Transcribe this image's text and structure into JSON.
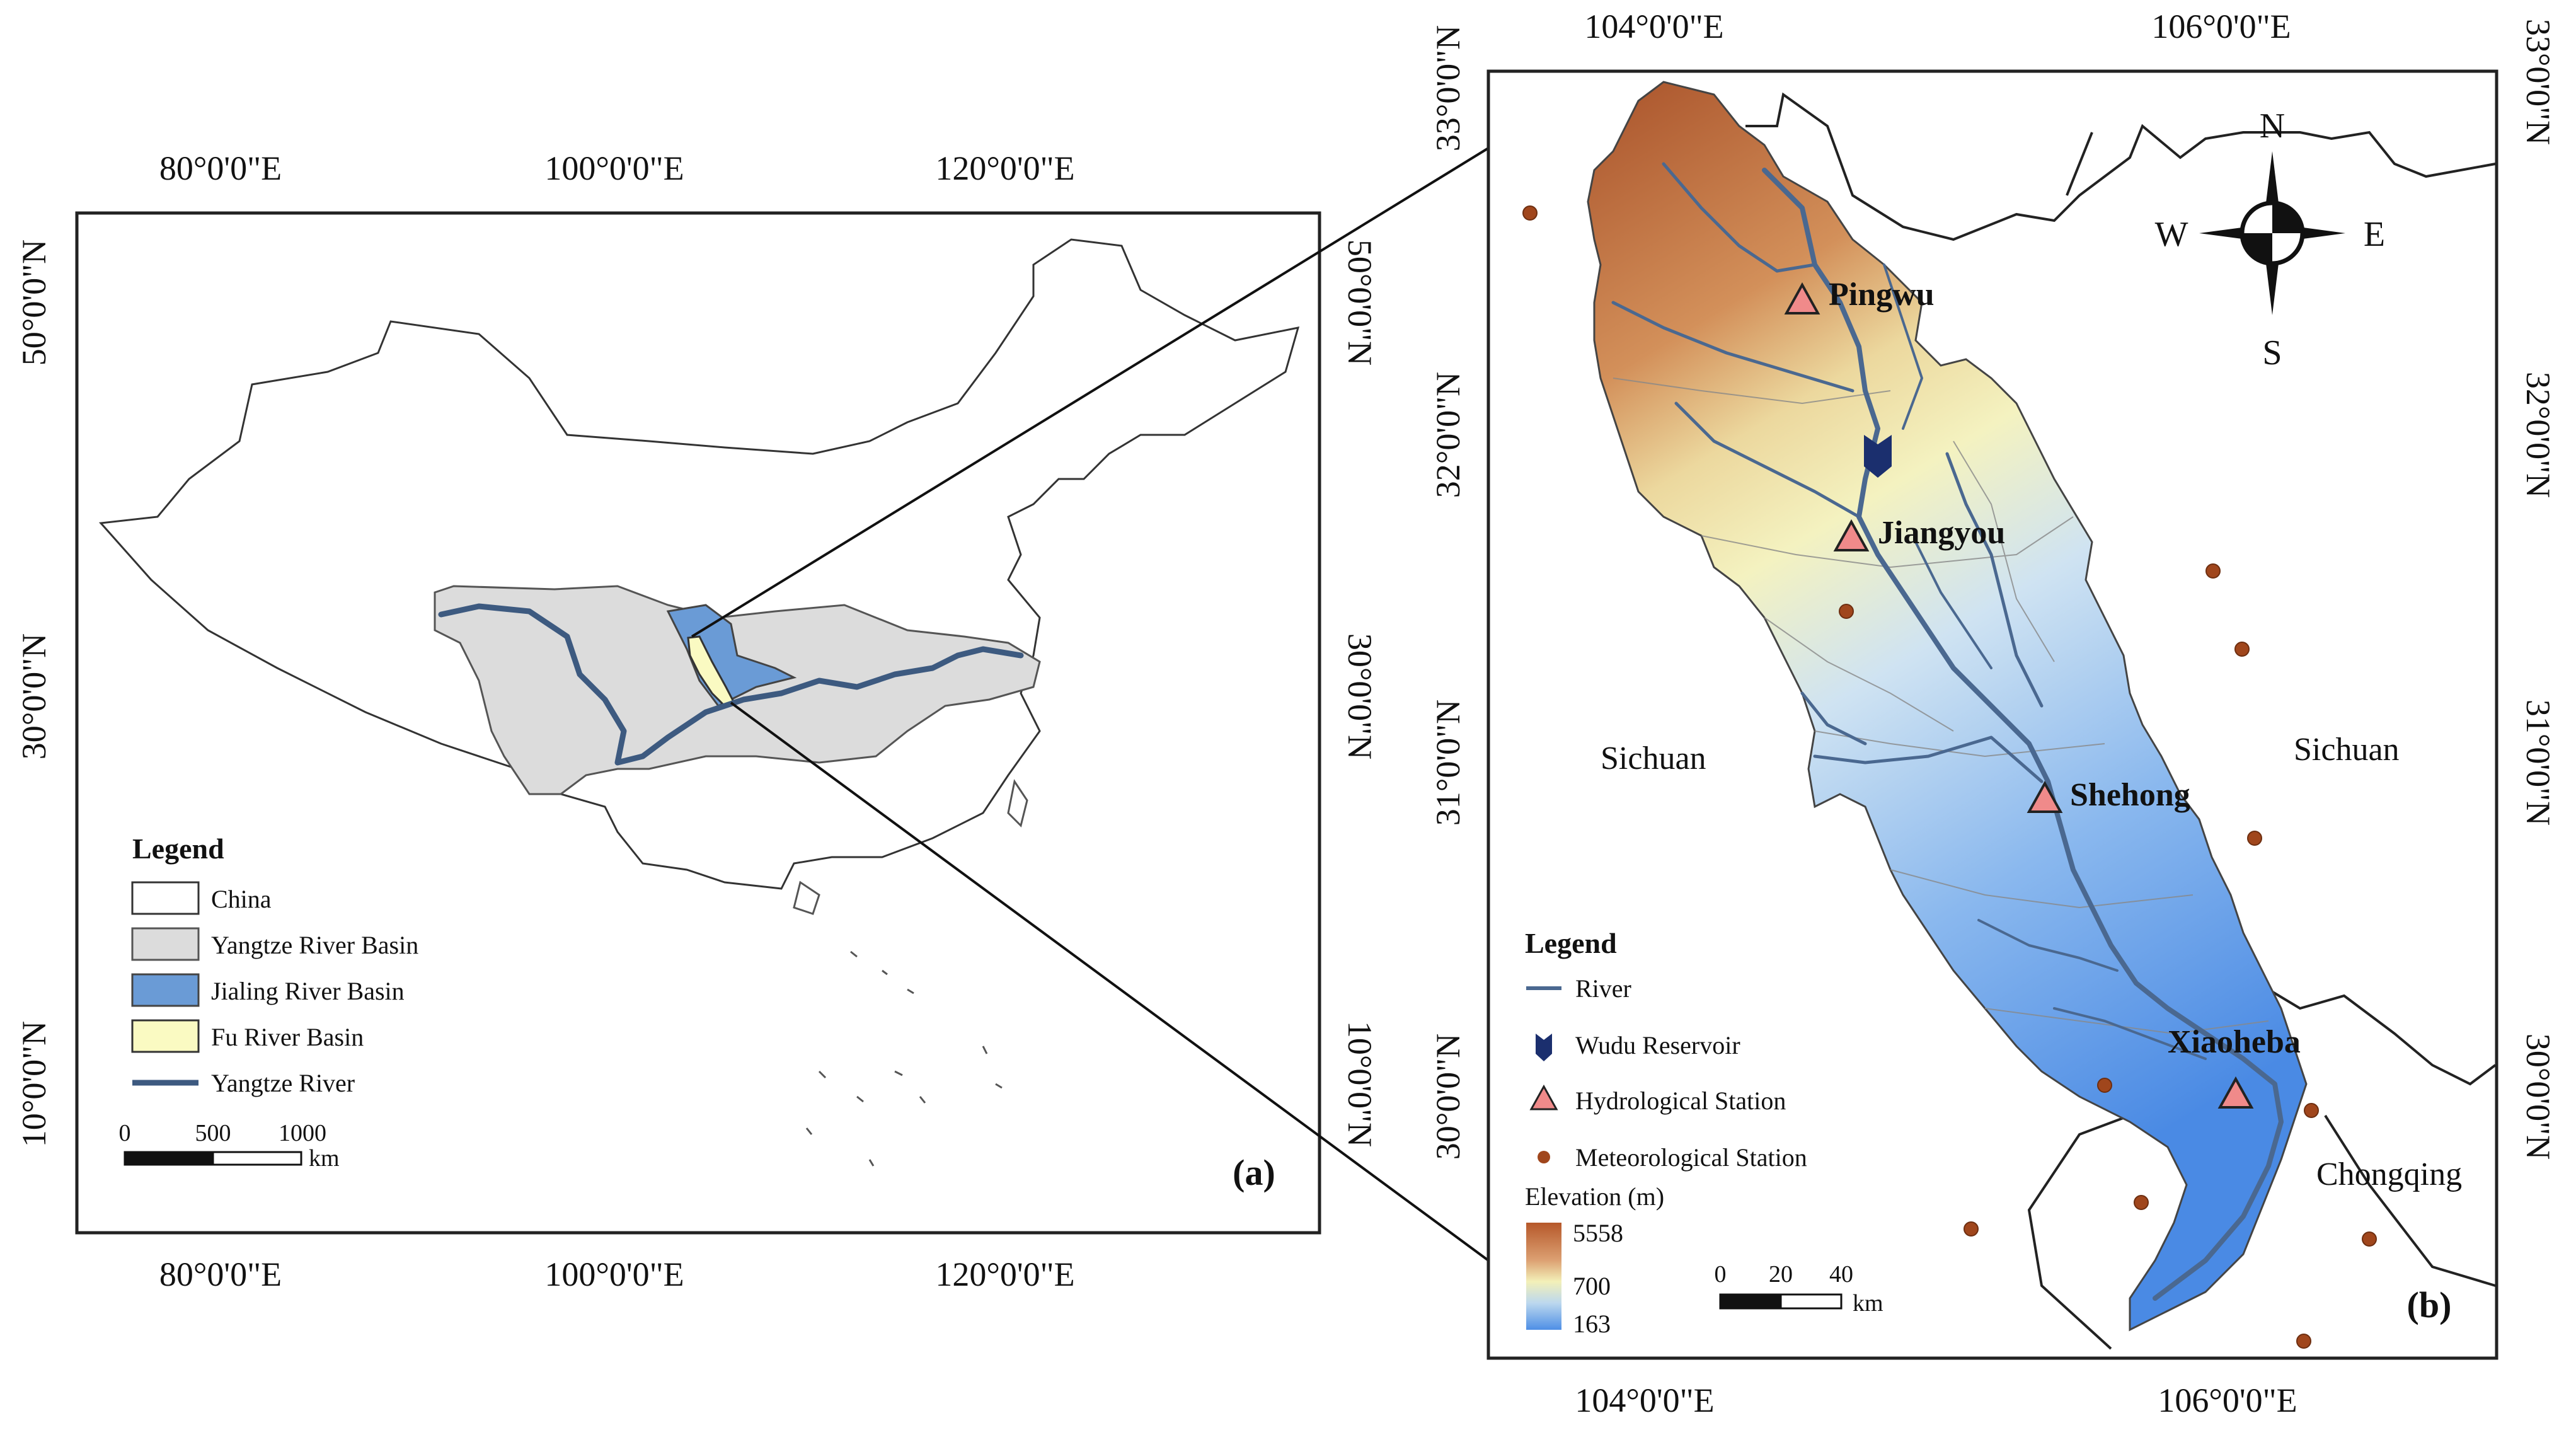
{
  "panel_a": {
    "label": "(a)",
    "x_ticks_top": [
      "80°0'0\"E",
      "100°0'0\"E",
      "120°0'0\"E"
    ],
    "x_ticks_bottom": [
      "80°0'0\"E",
      "100°0'0\"E",
      "120°0'0\"E"
    ],
    "y_ticks_left": [
      "50°0'0\"N",
      "30°0'0\"N",
      "10°0'0\"N"
    ],
    "y_ticks_right": [
      "50°0'0\"N",
      "30°0'0\"N",
      "10°0'0\"N"
    ],
    "legend": {
      "title": "Legend",
      "items": [
        {
          "label": "China",
          "color": "#ffffff"
        },
        {
          "label": "Yangtze River Basin",
          "color": "#dcdcdc"
        },
        {
          "label": "Jialing River Basin",
          "color": "#6a9bd6"
        },
        {
          "label": "Fu River Basin",
          "color": "#fafac2"
        },
        {
          "label": "Yangtze River",
          "color": "#3d5a80"
        }
      ]
    },
    "scale_bar": {
      "labels": [
        "0",
        "500",
        "1000"
      ],
      "unit": "km"
    }
  },
  "panel_b": {
    "label": "(b)",
    "x_ticks_top": [
      "104°0'0\"E",
      "106°0'0\"E"
    ],
    "x_ticks_bottom": [
      "104°0'0\"E",
      "106°0'0\"E"
    ],
    "y_ticks_left": [
      "33°0'0\"N",
      "32°0'0\"N",
      "31°0'0\"N",
      "30°0'0\"N"
    ],
    "y_ticks_right": [
      "33°0'0\"N",
      "32°0'0\"N",
      "31°0'0\"N",
      "30°0'0\"N"
    ],
    "stations": [
      "Pingwu",
      "Jiangyou",
      "Shehong",
      "Xiaoheba"
    ],
    "regions": [
      "Sichuan",
      "Sichuan",
      "Chongqing"
    ],
    "compass": {
      "n": "N",
      "s": "S",
      "e": "E",
      "w": "W"
    },
    "legend": {
      "title": "Legend",
      "items": [
        {
          "label": "River",
          "icon": "river-line-icon"
        },
        {
          "label": "Wudu Reservoir",
          "icon": "reservoir-icon"
        },
        {
          "label": "Hydrological Station",
          "icon": "triangle-icon"
        },
        {
          "label": "Meteorological Station",
          "icon": "dot-icon"
        }
      ],
      "elevation_title": "Elevation (m)",
      "elevation_labels": [
        "5558",
        "700",
        "163"
      ]
    },
    "scale_bar": {
      "labels": [
        "0",
        "20",
        "40"
      ],
      "unit": "km"
    },
    "colors": {
      "river": "#4a6890",
      "station_fill": "#f08a8a",
      "met_dot": "#a0461c",
      "reservoir": "#1b2f6e"
    }
  }
}
